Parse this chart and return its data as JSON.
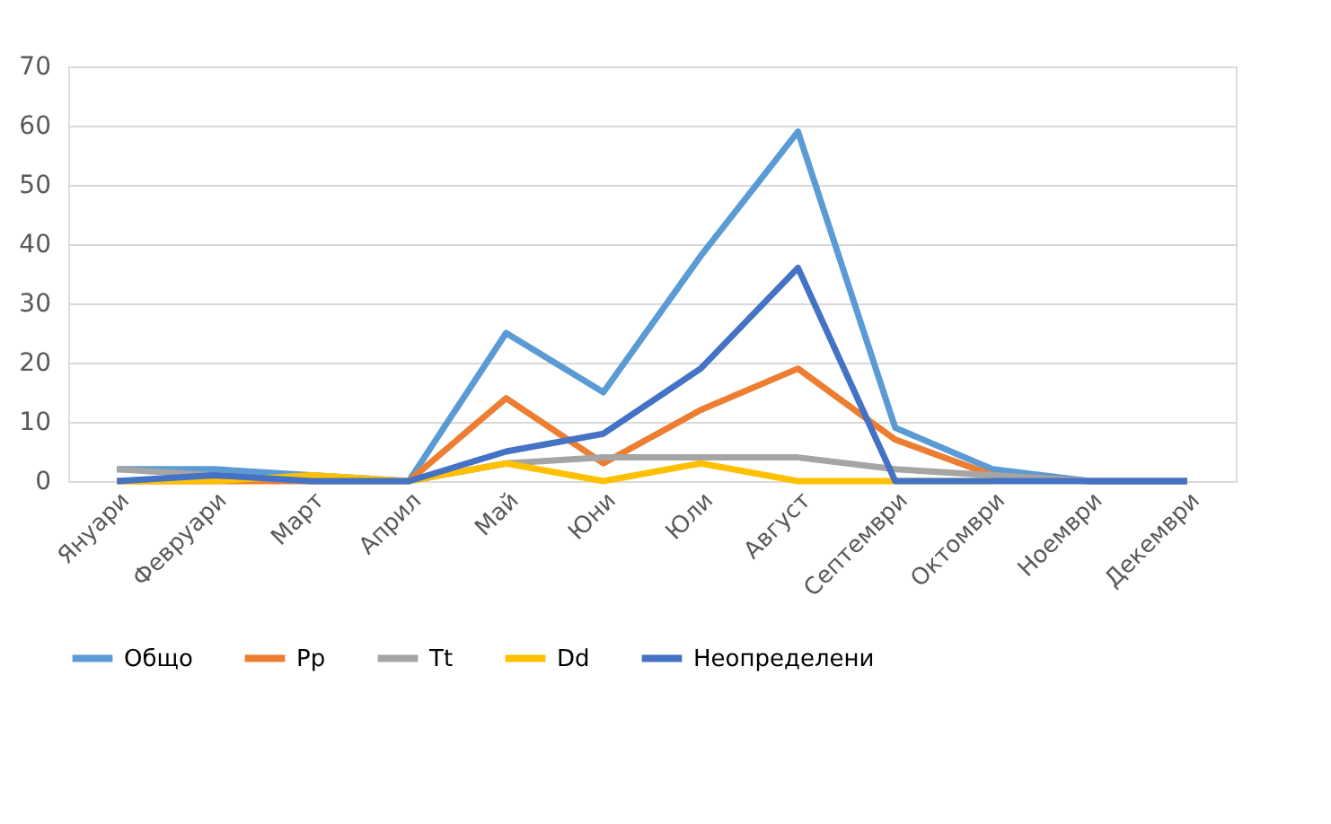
{
  "chart_data": {
    "type": "line",
    "categories": [
      "Януари",
      "Февруари",
      "Март",
      "Април",
      "Май",
      "Юни",
      "Юли",
      "Август",
      "Септември",
      "Октомври",
      "Ноември",
      "Декември"
    ],
    "series": [
      {
        "name": "Общо",
        "color": "#5b9bd5",
        "values": [
          2,
          2,
          1,
          0,
          25,
          15,
          38,
          59,
          9,
          2,
          0,
          0
        ]
      },
      {
        "name": "Pp",
        "color": "#ed7d31",
        "values": [
          0,
          0,
          0,
          0,
          14,
          3,
          12,
          19,
          7,
          1,
          0,
          0
        ]
      },
      {
        "name": "Tt",
        "color": "#a5a5a5",
        "values": [
          2,
          1,
          0,
          0,
          3,
          4,
          4,
          4,
          2,
          1,
          0,
          0
        ]
      },
      {
        "name": "Dd",
        "color": "#ffc000",
        "values": [
          0,
          0,
          1,
          0,
          3,
          0,
          3,
          0,
          0,
          0,
          null,
          null
        ]
      },
      {
        "name": "Неопределени",
        "color": "#4472c4",
        "values": [
          0,
          1,
          0,
          0,
          5,
          8,
          19,
          36,
          0,
          0,
          0,
          0
        ]
      }
    ],
    "ylim": [
      0,
      70
    ],
    "yticks": [
      0,
      10,
      20,
      30,
      40,
      50,
      60,
      70
    ],
    "grid": "y",
    "legend": "bottom",
    "marker": "none",
    "line_style": "solid"
  }
}
